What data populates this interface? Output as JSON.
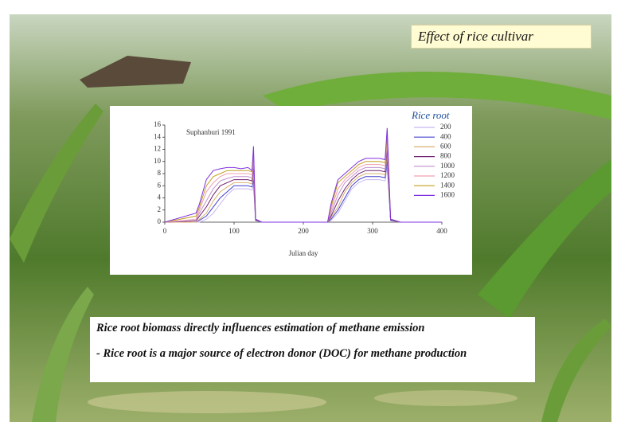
{
  "header": {
    "title": "Effect of rice cultivar"
  },
  "chart_data": {
    "type": "line",
    "annotation": "Suphanburi 1991",
    "x_label": "Julian day",
    "legend_title": "Rice root",
    "x": [
      0,
      45,
      50,
      60,
      70,
      80,
      90,
      100,
      110,
      120,
      126,
      128,
      131,
      140,
      235,
      240,
      250,
      260,
      270,
      280,
      290,
      300,
      310,
      318,
      321,
      326,
      340,
      400
    ],
    "xlim": [
      0,
      400
    ],
    "xticks": [
      0,
      100,
      200,
      300,
      400
    ],
    "ylim": [
      0,
      16
    ],
    "yticks": [
      0,
      2,
      4,
      6,
      8,
      10,
      12,
      14,
      16
    ],
    "series": [
      {
        "name": "200",
        "color": "#c8b8f0",
        "values": [
          0,
          0,
          0,
          0.5,
          1.5,
          3,
          4.5,
          5.5,
          5.5,
          5.5,
          5.3,
          6,
          0.3,
          0,
          0,
          0.3,
          1.5,
          3.5,
          5.5,
          6.5,
          7,
          7,
          7,
          6.8,
          9,
          0.3,
          0,
          0
        ]
      },
      {
        "name": "400",
        "color": "#4040d0",
        "values": [
          0,
          0,
          0.3,
          1,
          2.5,
          4,
          5,
          6,
          6,
          6,
          5.8,
          7,
          0.3,
          0,
          0,
          0.5,
          2,
          4,
          6,
          7,
          7.5,
          7.5,
          7.5,
          7.3,
          10,
          0.3,
          0,
          0
        ]
      },
      {
        "name": "600",
        "color": "#d8b070",
        "values": [
          0,
          0,
          0.5,
          1.5,
          3.5,
          5,
          5.8,
          6.5,
          6.5,
          6.5,
          6.3,
          8,
          0.4,
          0,
          0,
          0.8,
          2.5,
          5,
          6.5,
          7.5,
          8,
          8,
          8,
          7.8,
          11,
          0.4,
          0,
          0
        ]
      },
      {
        "name": "800",
        "color": "#702070",
        "values": [
          0,
          0.2,
          1,
          2.5,
          4.5,
          6,
          6.5,
          7,
          7,
          7,
          6.8,
          9,
          0.4,
          0,
          0,
          1,
          3.5,
          5.5,
          7,
          8,
          8.5,
          8.5,
          8.5,
          8.3,
          12,
          0.4,
          0,
          0
        ]
      },
      {
        "name": "1000",
        "color": "#c090d0",
        "values": [
          0,
          0.3,
          1.5,
          3.5,
          5.5,
          6.8,
          7.2,
          7.5,
          7.5,
          7.5,
          7.3,
          10,
          0.5,
          0,
          0,
          1.5,
          4.5,
          6.5,
          7.5,
          8.5,
          9,
          9,
          9,
          8.8,
          13,
          0.5,
          0,
          0
        ]
      },
      {
        "name": "1200",
        "color": "#f0a0b0",
        "values": [
          0,
          0.5,
          2,
          5,
          6.5,
          7.5,
          8,
          8,
          8,
          8,
          7.8,
          11,
          0.5,
          0,
          0,
          2,
          5.5,
          7,
          8,
          9,
          9.5,
          9.5,
          9.5,
          9.3,
          14,
          0.5,
          0,
          0
        ]
      },
      {
        "name": "1400",
        "color": "#c0a020",
        "values": [
          0,
          1,
          2.5,
          6,
          7.5,
          8,
          8.5,
          8.5,
          8.5,
          8.5,
          8.3,
          11.5,
          0.5,
          0,
          0,
          2.5,
          6.5,
          7.5,
          8.5,
          9.5,
          10,
          10,
          10,
          9.8,
          14.5,
          0.5,
          0,
          0
        ]
      },
      {
        "name": "1600",
        "color": "#8030e0",
        "values": [
          0,
          1.5,
          3,
          7,
          8.5,
          8.8,
          9,
          9,
          8.8,
          9,
          8.5,
          12.5,
          0.5,
          0,
          0,
          3,
          7,
          8,
          9,
          10,
          10.5,
          10.5,
          10.5,
          10.3,
          15.5,
          0.5,
          0,
          0
        ]
      }
    ]
  },
  "body": {
    "lines": [
      "Rice root biomass directly influences estimation of methane emission",
      "- Rice root is a major source of electron donor (DOC) for methane production"
    ]
  }
}
